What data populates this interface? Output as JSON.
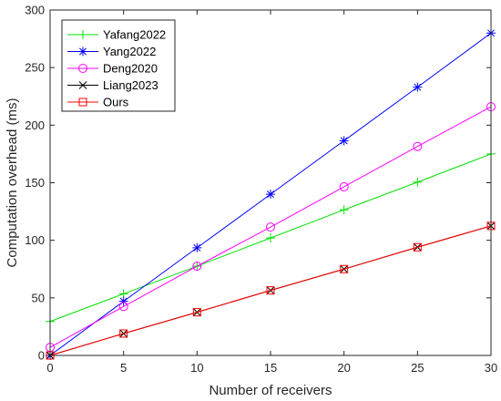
{
  "chart_data": {
    "type": "line",
    "xlabel": "Number of receivers",
    "ylabel": "Computation overhead (ms)",
    "xlim": [
      0,
      30
    ],
    "ylim": [
      0,
      300
    ],
    "xticks": [
      0,
      5,
      10,
      15,
      20,
      25,
      30
    ],
    "yticks": [
      0,
      50,
      100,
      150,
      200,
      250,
      300
    ],
    "grid": false,
    "legend_position": "top-left",
    "series": [
      {
        "name": "Yafang2022",
        "color": "#00e000",
        "marker": "plus",
        "x": [
          0,
          5,
          10,
          15,
          20,
          25,
          30
        ],
        "y": [
          29.5,
          53.5,
          77.5,
          102,
          126.5,
          150.5,
          175
        ]
      },
      {
        "name": "Yang2022",
        "color": "#0000ff",
        "marker": "asterisk",
        "x": [
          0,
          5,
          10,
          15,
          20,
          25,
          30
        ],
        "y": [
          0,
          47,
          93.5,
          140,
          186.5,
          233,
          280
        ]
      },
      {
        "name": "Deng2020",
        "color": "#ff00ff",
        "marker": "circle",
        "x": [
          0,
          5,
          10,
          15,
          20,
          25,
          30
        ],
        "y": [
          7,
          42.5,
          77.5,
          111.5,
          146.5,
          181.5,
          216
        ]
      },
      {
        "name": "Liang2023",
        "color": "#000000",
        "marker": "x",
        "x": [
          0,
          5,
          10,
          15,
          20,
          25,
          30
        ],
        "y": [
          0,
          19,
          37.5,
          56.5,
          75,
          94,
          112.5
        ]
      },
      {
        "name": "Ours",
        "color": "#ff0000",
        "marker": "square",
        "x": [
          0,
          5,
          10,
          15,
          20,
          25,
          30
        ],
        "y": [
          0,
          19,
          37.5,
          56.5,
          75,
          94,
          112.5
        ]
      }
    ]
  }
}
